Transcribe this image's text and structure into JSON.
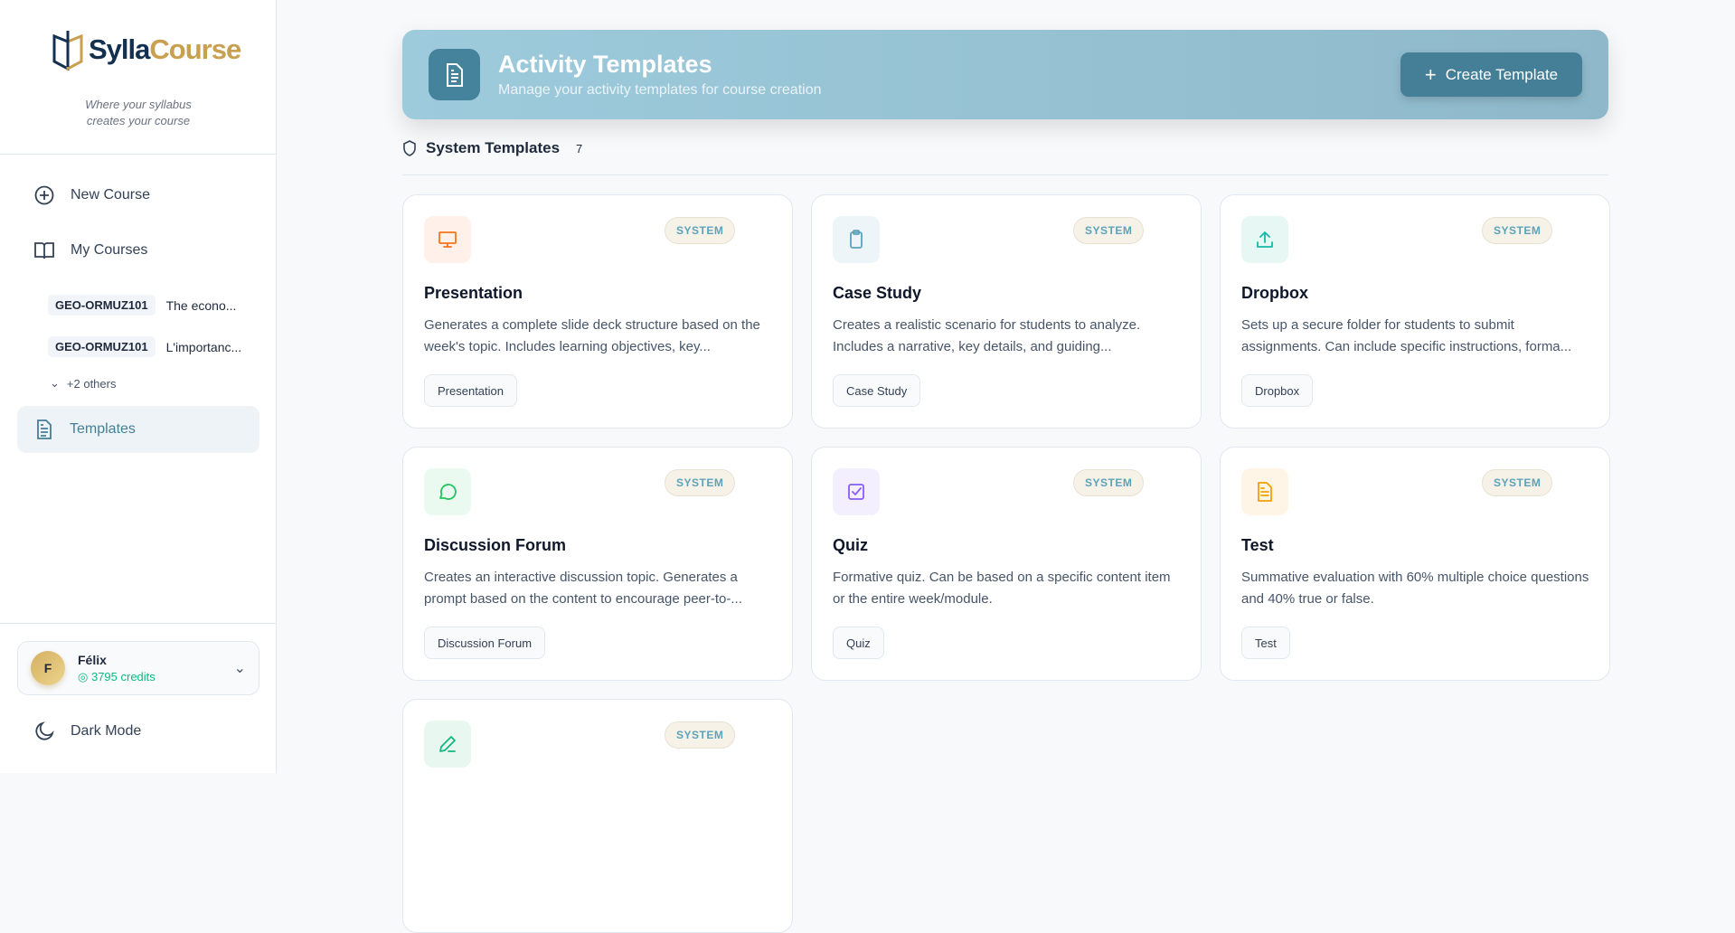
{
  "brand": {
    "name_a": "Sylla",
    "name_b": "Course",
    "tagline_1": "Where your syllabus",
    "tagline_2": "creates your course"
  },
  "sidebar": {
    "new_course": "New Course",
    "my_courses": "My Courses",
    "courses": [
      {
        "code": "GEO-ORMUZ101",
        "title": "The econo..."
      },
      {
        "code": "GEO-ORMUZ101",
        "title": "L'importanc..."
      }
    ],
    "more": "+2 others",
    "templates": "Templates"
  },
  "user": {
    "initial": "F",
    "name": "Félix",
    "credits": "3795 credits"
  },
  "dark_mode": "Dark Mode",
  "header": {
    "title": "Activity Templates",
    "subtitle": "Manage your activity templates for course creation",
    "create_label": "Create Template"
  },
  "section": {
    "title": "System Templates",
    "count": "7"
  },
  "cards": [
    {
      "title": "Presentation",
      "desc": "Generates a complete slide deck structure based on the week's topic. Includes learning objectives, key...",
      "tag": "Presentation",
      "badge": "SYSTEM",
      "icon": "monitor-icon",
      "color": "#f97316",
      "bg": "#fff1ea"
    },
    {
      "title": "Case Study",
      "desc": "Creates a realistic scenario for students to analyze. Includes a narrative, key details, and guiding...",
      "tag": "Case Study",
      "badge": "SYSTEM",
      "icon": "clipboard-icon",
      "color": "#5aa3bb",
      "bg": "#edf5f8"
    },
    {
      "title": "Dropbox",
      "desc": "Sets up a secure folder for students to submit assignments. Can include specific instructions, forma...",
      "tag": "Dropbox",
      "badge": "SYSTEM",
      "icon": "upload-icon",
      "color": "#14b8a6",
      "bg": "#e6f7f4"
    },
    {
      "title": "Discussion Forum",
      "desc": "Creates an interactive discussion topic. Generates a prompt based on the content to encourage peer-to-...",
      "tag": "Discussion Forum",
      "badge": "SYSTEM",
      "icon": "chat-icon",
      "color": "#22c55e",
      "bg": "#eafaf0"
    },
    {
      "title": "Quiz",
      "desc": "Formative quiz. Can be based on a specific content item or the entire week/module.",
      "tag": "Quiz",
      "badge": "SYSTEM",
      "icon": "checkbox-icon",
      "color": "#8b5cf6",
      "bg": "#f3effe"
    },
    {
      "title": "Test",
      "desc": "Summative evaluation with 60% multiple choice questions and 40% true or false.",
      "tag": "Test",
      "badge": "SYSTEM",
      "icon": "document-icon",
      "color": "#f59e0b",
      "bg": "#fff5e6"
    },
    {
      "title": "",
      "desc": "",
      "tag": "",
      "badge": "SYSTEM",
      "icon": "pencil-icon",
      "color": "#10b981",
      "bg": "#e8f8f1"
    }
  ]
}
